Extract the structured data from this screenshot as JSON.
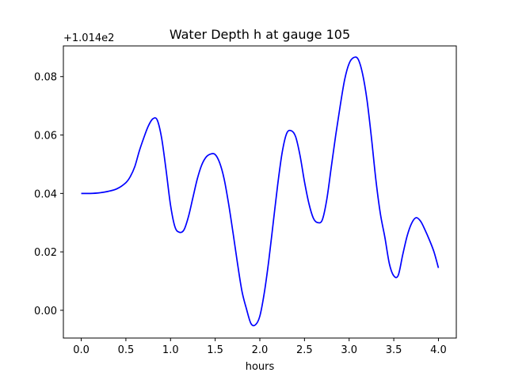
{
  "chart_data": {
    "type": "line",
    "title": "Water Depth h at gauge 105",
    "xlabel": "hours",
    "ylabel": "",
    "offset_label": "+1.014e2",
    "xlim": [
      -0.2,
      4.2
    ],
    "ylim": [
      -0.0095,
      0.0905
    ],
    "xticks": [
      0.0,
      0.5,
      1.0,
      1.5,
      2.0,
      2.5,
      3.0,
      3.5,
      4.0
    ],
    "xtick_labels": [
      "0.0",
      "0.5",
      "1.0",
      "1.5",
      "2.0",
      "2.5",
      "3.0",
      "3.5",
      "4.0"
    ],
    "yticks": [
      0.0,
      0.02,
      0.04,
      0.06,
      0.08
    ],
    "ytick_labels": [
      "0.00",
      "0.02",
      "0.04",
      "0.06",
      "0.08"
    ],
    "grid": false,
    "series": [
      {
        "color": "#0000ff",
        "x": [
          0.0,
          0.1,
          0.2,
          0.3,
          0.4,
          0.5,
          0.55,
          0.6,
          0.65,
          0.7,
          0.75,
          0.8,
          0.85,
          0.9,
          0.95,
          1.0,
          1.05,
          1.1,
          1.15,
          1.2,
          1.25,
          1.3,
          1.35,
          1.4,
          1.45,
          1.5,
          1.55,
          1.6,
          1.65,
          1.7,
          1.75,
          1.8,
          1.85,
          1.9,
          1.95,
          2.0,
          2.05,
          2.1,
          2.15,
          2.2,
          2.25,
          2.3,
          2.35,
          2.4,
          2.45,
          2.5,
          2.55,
          2.6,
          2.65,
          2.7,
          2.75,
          2.8,
          2.85,
          2.9,
          2.95,
          3.0,
          3.05,
          3.1,
          3.15,
          3.2,
          3.25,
          3.3,
          3.35,
          3.4,
          3.45,
          3.5,
          3.55,
          3.6,
          3.65,
          3.7,
          3.75,
          3.8,
          3.85,
          3.9,
          3.95,
          4.0
        ],
        "y": [
          0.04,
          0.04,
          0.0402,
          0.0407,
          0.0416,
          0.0437,
          0.0458,
          0.0492,
          0.0545,
          0.059,
          0.063,
          0.0655,
          0.0652,
          0.059,
          0.048,
          0.036,
          0.0285,
          0.0267,
          0.0275,
          0.032,
          0.0385,
          0.045,
          0.0498,
          0.0525,
          0.0535,
          0.0533,
          0.0505,
          0.045,
          0.0365,
          0.0265,
          0.016,
          0.0065,
          0.0005,
          -0.0045,
          -0.005,
          -0.002,
          0.006,
          0.017,
          0.03,
          0.043,
          0.054,
          0.0605,
          0.0615,
          0.0595,
          0.053,
          0.044,
          0.0365,
          0.0315,
          0.03,
          0.031,
          0.038,
          0.049,
          0.06,
          0.07,
          0.079,
          0.0845,
          0.0865,
          0.086,
          0.081,
          0.072,
          0.059,
          0.0445,
          0.033,
          0.025,
          0.016,
          0.0118,
          0.012,
          0.019,
          0.0255,
          0.0298,
          0.0317,
          0.0305,
          0.0275,
          0.024,
          0.02,
          0.0145
        ]
      }
    ]
  }
}
